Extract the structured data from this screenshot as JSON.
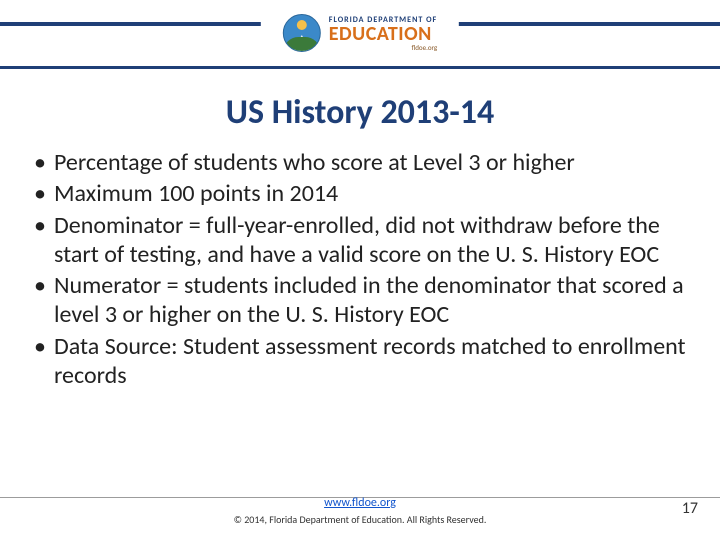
{
  "header": {
    "logo": {
      "line1": "FLORIDA DEPARTMENT OF",
      "line2": "EDUCATION",
      "line3": "fldoe.org"
    }
  },
  "title": "US History 2013-14",
  "bullets": [
    "Percentage of students who score at Level 3 or higher",
    "Maximum 100 points in 2014",
    "Denominator = full-year-enrolled, did not withdraw before the start of testing, and have a valid score on the U. S. History EOC",
    "Numerator = students included in the denominator that scored a level 3 or higher on the U. S. History EOC",
    "Data Source: Student assessment records matched to enrollment records"
  ],
  "footer": {
    "link": "www.fldoe.org",
    "copyright": "© 2014, Florida Department of Education. All Rights Reserved."
  },
  "page_number": "17",
  "colors": {
    "brand_navy": "#1f3f77",
    "brand_orange": "#d86f1a",
    "link": "#1154cc",
    "text": "#222222"
  }
}
